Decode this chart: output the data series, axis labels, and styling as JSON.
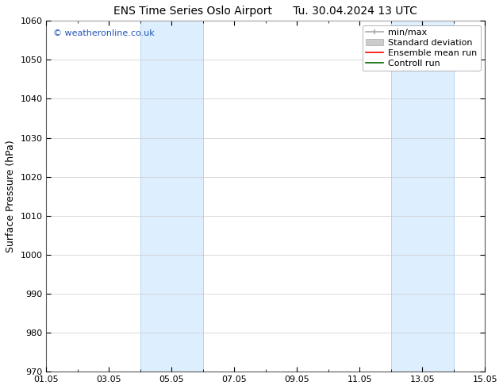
{
  "title_left": "ENS Time Series Oslo Airport",
  "title_right": "Tu. 30.04.2024 13 UTC",
  "ylabel": "Surface Pressure (hPa)",
  "xlim": [
    0,
    14
  ],
  "ylim": [
    970,
    1060
  ],
  "yticks": [
    970,
    980,
    990,
    1000,
    1010,
    1020,
    1030,
    1040,
    1050,
    1060
  ],
  "xtick_labels": [
    "01.05",
    "03.05",
    "05.05",
    "07.05",
    "09.05",
    "11.05",
    "13.05",
    "15.05"
  ],
  "xtick_positions": [
    0,
    2,
    4,
    6,
    8,
    10,
    12,
    14
  ],
  "shaded_bands": [
    {
      "x_start": 3.0,
      "x_end": 5.0
    },
    {
      "x_start": 11.0,
      "x_end": 13.0
    }
  ],
  "shaded_color": "#ddeeff",
  "shaded_edge_color": "#b8d4ea",
  "watermark_text": "© weatheronline.co.uk",
  "watermark_color": "#2255bb",
  "bg_color": "#ffffff",
  "grid_color": "#cccccc",
  "title_fontsize": 10,
  "tick_fontsize": 8,
  "legend_fontsize": 8,
  "watermark_fontsize": 8,
  "ylabel_fontsize": 9
}
